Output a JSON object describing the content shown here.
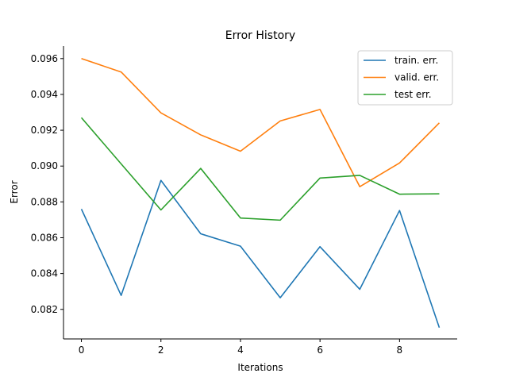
{
  "chart_data": {
    "type": "line",
    "title": "Error History",
    "xlabel": "Iterations",
    "ylabel": "Error",
    "x": [
      0,
      1,
      2,
      3,
      4,
      5,
      6,
      7,
      8,
      9
    ],
    "xlim": [
      -0.45,
      9.45
    ],
    "ylim": [
      0.08035,
      0.0967
    ],
    "xticks": [
      0,
      2,
      4,
      6,
      8
    ],
    "xtick_labels": [
      "0",
      "2",
      "4",
      "6",
      "8"
    ],
    "yticks": [
      0.082,
      0.084,
      0.086,
      0.088,
      0.09,
      0.092,
      0.094,
      0.096
    ],
    "ytick_labels": [
      "0.082",
      "0.084",
      "0.086",
      "0.088",
      "0.090",
      "0.092",
      "0.094",
      "0.096"
    ],
    "grid": false,
    "legend_position": "top-right",
    "series": [
      {
        "name": "train. err.",
        "color": "#1f77b4",
        "values": [
          0.0876,
          0.08278,
          0.0892,
          0.08622,
          0.08553,
          0.08265,
          0.0855,
          0.08312,
          0.08752,
          0.08098
        ]
      },
      {
        "name": "valid. err.",
        "color": "#ff7f0e",
        "values": [
          0.096,
          0.09525,
          0.09297,
          0.09174,
          0.09083,
          0.09252,
          0.09316,
          0.08885,
          0.09017,
          0.09241
        ]
      },
      {
        "name": "test err.",
        "color": "#2ca02c",
        "values": [
          0.0927,
          0.09012,
          0.08755,
          0.08987,
          0.0871,
          0.08698,
          0.08933,
          0.08948,
          0.08843,
          0.08845
        ]
      }
    ]
  }
}
